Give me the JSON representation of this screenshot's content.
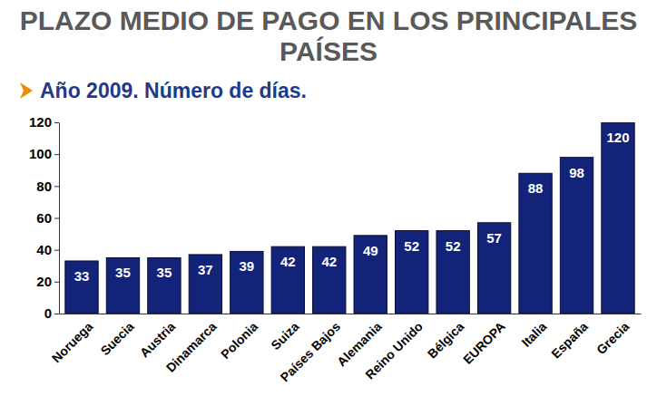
{
  "chart_data": {
    "type": "bar",
    "title": "PLAZO MEDIO DE PAGO EN LOS PRINCIPALES PAÍSES",
    "subtitle": "Año 2009. Número de días.",
    "categories": [
      "Noruega",
      "Suecia",
      "Austria",
      "Dinamarca",
      "Polonia",
      "Suiza",
      "Países Bajos",
      "Alemania",
      "Reino Unido",
      "Bélgica",
      "EUROPA",
      "Italia",
      "España",
      "Grecia"
    ],
    "values": [
      33,
      35,
      35,
      37,
      39,
      42,
      42,
      49,
      52,
      52,
      57,
      88,
      98,
      120
    ],
    "color": "#14237a",
    "ylim": [
      0,
      120
    ],
    "yticks": [
      0,
      20,
      40,
      60,
      80,
      100,
      120
    ],
    "grid": false,
    "data_labels": true
  }
}
